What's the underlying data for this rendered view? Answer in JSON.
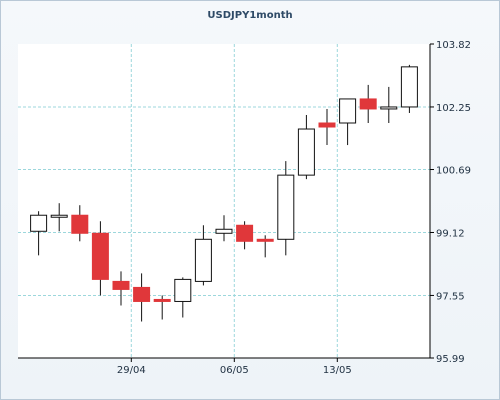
{
  "chart_data": {
    "type": "candlestick",
    "title": "USDJPY1month",
    "xlabel": "",
    "ylabel": "",
    "ylim": [
      95.99,
      103.82
    ],
    "y_ticks": [
      95.99,
      97.55,
      99.12,
      100.69,
      102.25,
      103.82
    ],
    "y_tick_labels": [
      "95.99",
      "97.55",
      "99.12",
      "100.69",
      "102.25",
      "103.82"
    ],
    "x_ticks": [
      {
        "label": "29/04",
        "index": 4.5
      },
      {
        "label": "06/05",
        "index": 9.5
      },
      {
        "label": "13/05",
        "index": 14.5
      }
    ],
    "grid": true,
    "candles": [
      {
        "open": 99.15,
        "high": 99.65,
        "low": 98.55,
        "close": 99.55
      },
      {
        "open": 99.5,
        "high": 99.85,
        "low": 99.15,
        "close": 99.55
      },
      {
        "open": 99.55,
        "high": 99.8,
        "low": 98.9,
        "close": 99.1
      },
      {
        "open": 99.1,
        "high": 99.4,
        "low": 97.55,
        "close": 97.95
      },
      {
        "open": 97.9,
        "high": 98.15,
        "low": 97.3,
        "close": 97.7
      },
      {
        "open": 97.75,
        "high": 98.1,
        "low": 96.9,
        "close": 97.4
      },
      {
        "open": 97.45,
        "high": 97.55,
        "low": 96.95,
        "close": 97.4
      },
      {
        "open": 97.4,
        "high": 98.0,
        "low": 97.0,
        "close": 97.95
      },
      {
        "open": 97.9,
        "high": 99.3,
        "low": 97.8,
        "close": 98.95
      },
      {
        "open": 99.1,
        "high": 99.55,
        "low": 98.9,
        "close": 99.2
      },
      {
        "open": 99.3,
        "high": 99.4,
        "low": 98.7,
        "close": 98.9
      },
      {
        "open": 98.95,
        "high": 99.05,
        "low": 98.5,
        "close": 98.9
      },
      {
        "open": 98.95,
        "high": 100.9,
        "low": 98.55,
        "close": 100.55
      },
      {
        "open": 100.55,
        "high": 102.05,
        "low": 100.45,
        "close": 101.7
      },
      {
        "open": 101.85,
        "high": 102.2,
        "low": 101.3,
        "close": 101.75
      },
      {
        "open": 101.85,
        "high": 102.45,
        "low": 101.3,
        "close": 102.45
      },
      {
        "open": 102.45,
        "high": 102.8,
        "low": 101.85,
        "close": 102.2
      },
      {
        "open": 102.25,
        "high": 102.75,
        "low": 101.85,
        "close": 102.25
      },
      {
        "open": 102.25,
        "high": 103.3,
        "low": 102.1,
        "close": 103.25
      }
    ],
    "colors": {
      "up_body": "#ffffff",
      "down_body": "#e0373a",
      "wick": "#111111",
      "grid": "#9cd7dc",
      "plot_bg": "#ffffff",
      "axis": "#000000"
    }
  }
}
